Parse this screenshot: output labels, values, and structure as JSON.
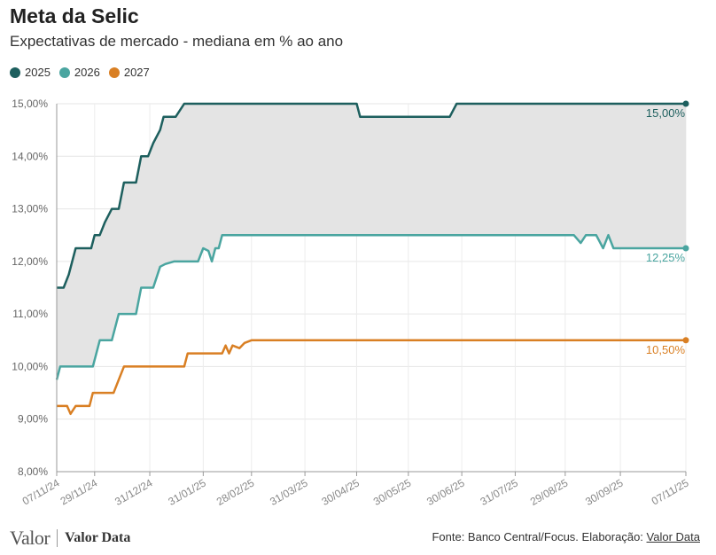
{
  "header": {
    "title": "Meta da Selic",
    "subtitle": "Expectativas de mercado - mediana em % ao ano"
  },
  "footer": {
    "logo_main": "Valor",
    "logo_data": "Valor Data",
    "source_prefix": "Fonte: Banco Central/Focus. Elaboração: ",
    "source_link": "Valor Data"
  },
  "chart_data": {
    "type": "line",
    "title": "Meta da Selic",
    "subtitle": "Expectativas de mercado - mediana em % ao ano",
    "xlabel": "",
    "ylabel": "",
    "ylim": [
      8,
      15
    ],
    "y_ticks": [
      "8,00%",
      "9,00%",
      "10,00%",
      "11,00%",
      "12,00%",
      "13,00%",
      "14,00%",
      "15,00%"
    ],
    "x_ticks": [
      "07/11/24",
      "29/11/24",
      "31/12/24",
      "31/01/25",
      "28/02/25",
      "31/03/25",
      "30/04/25",
      "30/05/25",
      "30/06/25",
      "31/07/25",
      "29/08/25",
      "30/09/25",
      "07/11/25"
    ],
    "x_range": [
      "2024-11-07",
      "2025-11-07"
    ],
    "grid": true,
    "legend_position": "top-left",
    "band_between": [
      "2025",
      "2026"
    ],
    "band_color": "#e4e4e4",
    "series": [
      {
        "name": "2025",
        "color": "#1d5f5e",
        "end_label": "15,00%",
        "points": [
          [
            "2024-11-07",
            11.5
          ],
          [
            "2024-11-11",
            11.5
          ],
          [
            "2024-11-14",
            11.75
          ],
          [
            "2024-11-18",
            12.25
          ],
          [
            "2024-11-22",
            12.25
          ],
          [
            "2024-11-27",
            12.25
          ],
          [
            "2024-11-29",
            12.5
          ],
          [
            "2024-12-02",
            12.5
          ],
          [
            "2024-12-05",
            12.75
          ],
          [
            "2024-12-09",
            13.0
          ],
          [
            "2024-12-13",
            13.0
          ],
          [
            "2024-12-16",
            13.5
          ],
          [
            "2024-12-23",
            13.5
          ],
          [
            "2024-12-26",
            14.0
          ],
          [
            "2024-12-30",
            14.0
          ],
          [
            "2025-01-02",
            14.25
          ],
          [
            "2025-01-06",
            14.5
          ],
          [
            "2025-01-08",
            14.75
          ],
          [
            "2025-01-15",
            14.75
          ],
          [
            "2025-01-20",
            15.0
          ],
          [
            "2025-04-30",
            15.0
          ],
          [
            "2025-05-02",
            14.75
          ],
          [
            "2025-06-23",
            14.75
          ],
          [
            "2025-06-27",
            15.0
          ],
          [
            "2025-11-07",
            15.0
          ]
        ]
      },
      {
        "name": "2026",
        "color": "#4aa5a0",
        "end_label": "12,25%",
        "points": [
          [
            "2024-11-07",
            9.75
          ],
          [
            "2024-11-09",
            10.0
          ],
          [
            "2024-11-28",
            10.0
          ],
          [
            "2024-12-02",
            10.5
          ],
          [
            "2024-12-09",
            10.5
          ],
          [
            "2024-12-13",
            11.0
          ],
          [
            "2024-12-23",
            11.0
          ],
          [
            "2024-12-26",
            11.5
          ],
          [
            "2025-01-02",
            11.5
          ],
          [
            "2025-01-06",
            11.9
          ],
          [
            "2025-01-09",
            11.95
          ],
          [
            "2025-01-14",
            12.0
          ],
          [
            "2025-01-28",
            12.0
          ],
          [
            "2025-01-31",
            12.25
          ],
          [
            "2025-02-03",
            12.2
          ],
          [
            "2025-02-05",
            12.0
          ],
          [
            "2025-02-07",
            12.25
          ],
          [
            "2025-02-09",
            12.25
          ],
          [
            "2025-02-11",
            12.5
          ],
          [
            "2025-09-03",
            12.5
          ],
          [
            "2025-09-07",
            12.35
          ],
          [
            "2025-09-10",
            12.5
          ],
          [
            "2025-09-16",
            12.5
          ],
          [
            "2025-09-20",
            12.25
          ],
          [
            "2025-09-23",
            12.5
          ],
          [
            "2025-09-26",
            12.25
          ],
          [
            "2025-11-07",
            12.25
          ]
        ]
      },
      {
        "name": "2027",
        "color": "#d97f23",
        "end_label": "10,50%",
        "points": [
          [
            "2024-11-07",
            9.25
          ],
          [
            "2024-11-13",
            9.25
          ],
          [
            "2024-11-15",
            9.1
          ],
          [
            "2024-11-18",
            9.25
          ],
          [
            "2024-11-26",
            9.25
          ],
          [
            "2024-11-28",
            9.5
          ],
          [
            "2024-12-10",
            9.5
          ],
          [
            "2024-12-13",
            9.75
          ],
          [
            "2024-12-16",
            10.0
          ],
          [
            "2025-01-20",
            10.0
          ],
          [
            "2025-01-22",
            10.25
          ],
          [
            "2025-02-11",
            10.25
          ],
          [
            "2025-02-13",
            10.4
          ],
          [
            "2025-02-15",
            10.25
          ],
          [
            "2025-02-17",
            10.4
          ],
          [
            "2025-02-21",
            10.35
          ],
          [
            "2025-02-24",
            10.45
          ],
          [
            "2025-02-28",
            10.5
          ],
          [
            "2025-11-07",
            10.5
          ]
        ]
      }
    ]
  }
}
